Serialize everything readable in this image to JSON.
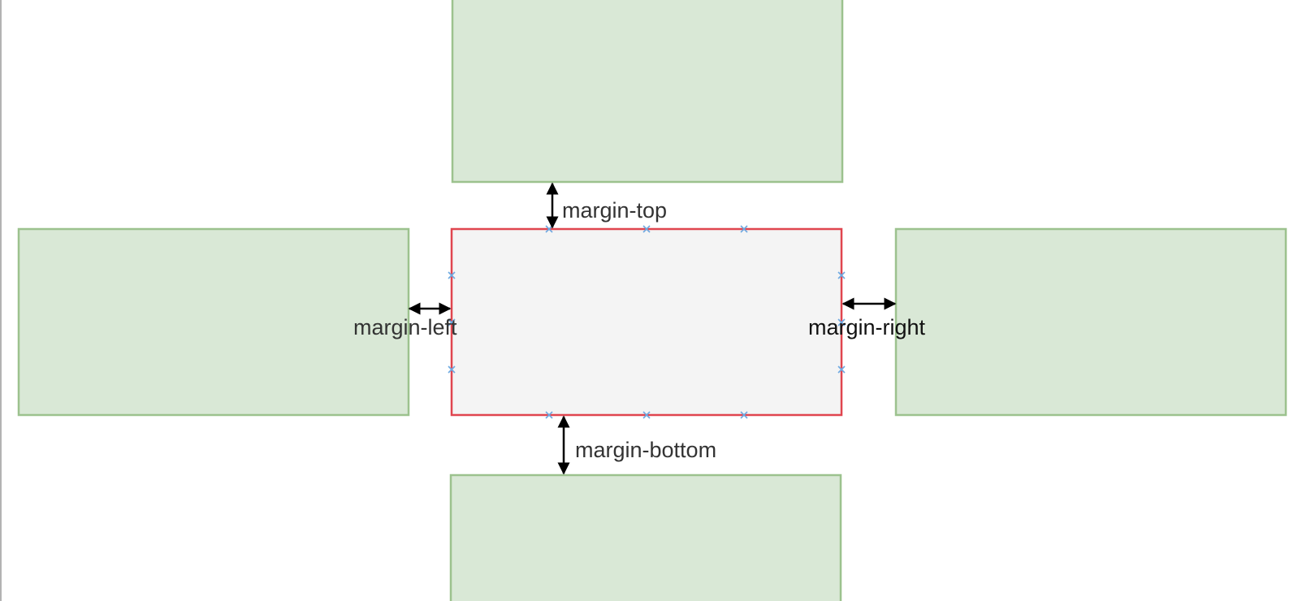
{
  "diagram": {
    "labels": {
      "margin_top": "margin-top",
      "margin_left": "margin-left",
      "margin_right": "margin-right",
      "margin_bottom": "margin-bottom"
    },
    "colors": {
      "neighbor_fill": "#d9e8d6",
      "neighbor_stroke": "#9cc28e",
      "center_fill": "#f4f4f4",
      "center_stroke": "#e0454f",
      "arrow": "#000000",
      "handle": "#6ea8e0",
      "text": "#333333"
    }
  }
}
